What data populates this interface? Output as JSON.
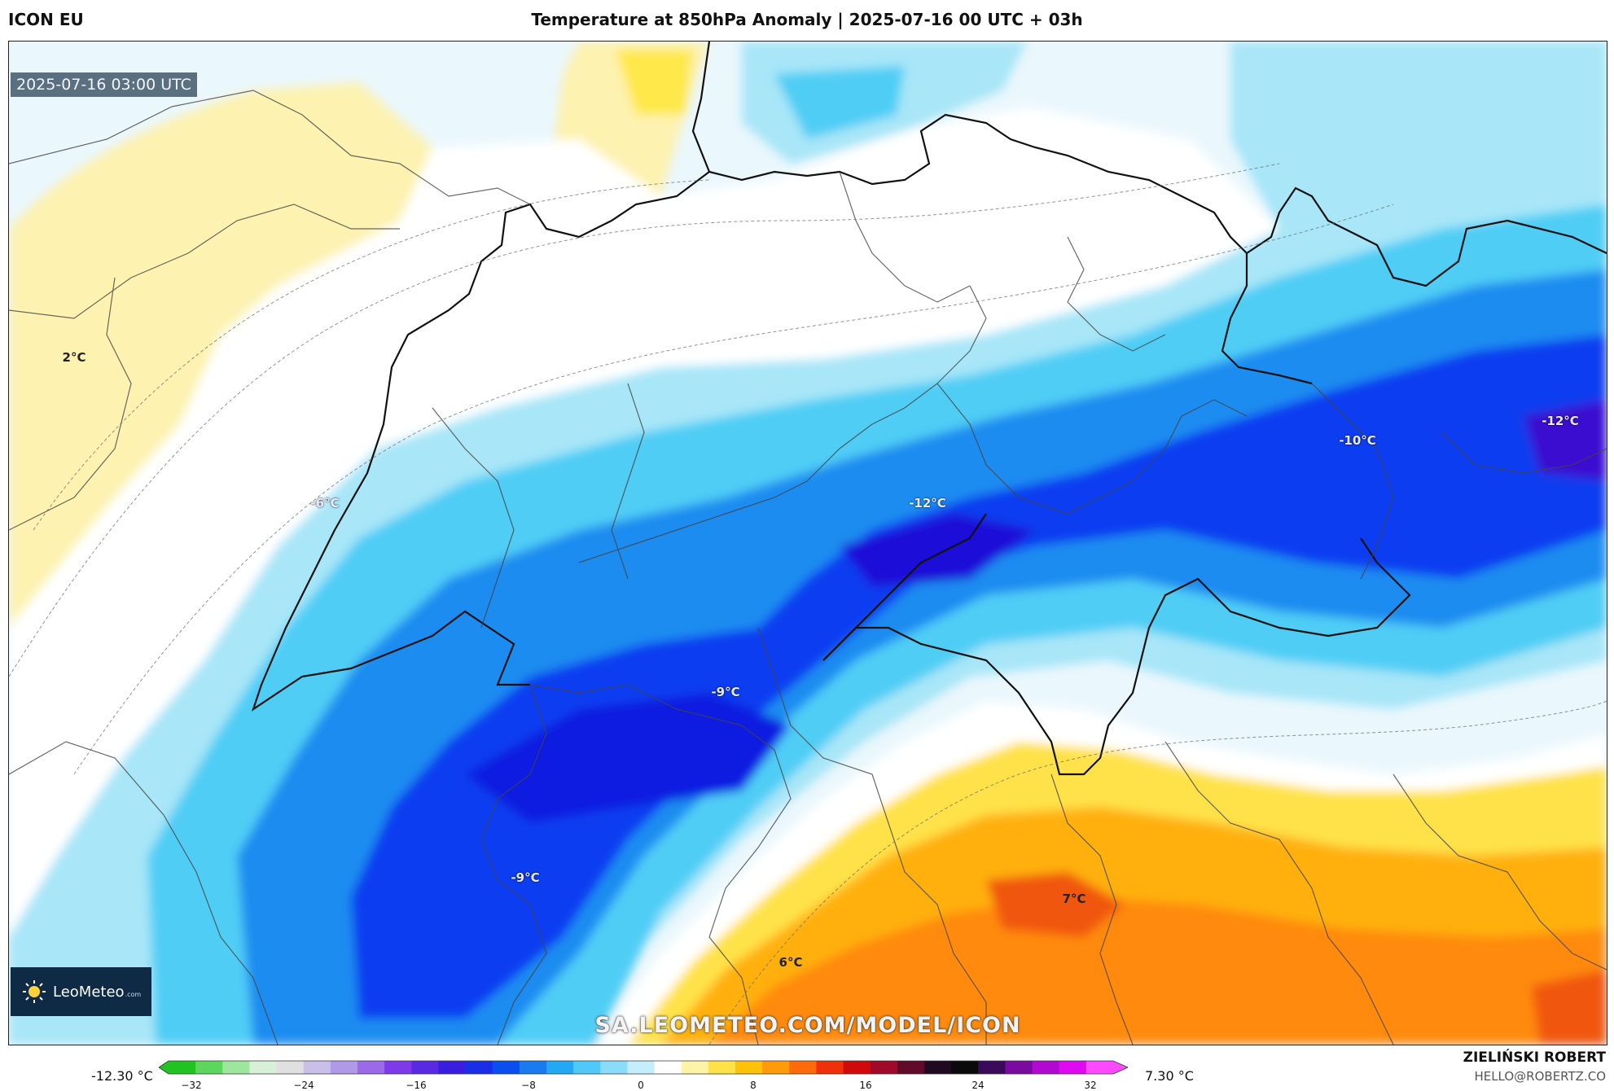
{
  "header": {
    "model": "ICON EU",
    "title": "Temperature at 850hPa Anomaly | 2025-07-16 00 UTC + 03h"
  },
  "map": {
    "timestamp": "2025-07-16 03:00 UTC",
    "labels": [
      "2°C",
      "-6°C",
      "-12°C",
      "-10°C",
      "-12°C",
      "-9°C",
      "-9°C",
      "6°C",
      "7°C"
    ],
    "watermark": "SA.LEOMETEO.COM/MODEL/ICON"
  },
  "logo": {
    "name": "LeoMeteo",
    "suffix": ".com",
    "icon": "sun-icon"
  },
  "colorbar": {
    "min_label": "-12.30 °C",
    "max_label": "7.30 °C",
    "ticks": [
      "−32",
      "−24",
      "−16",
      "−8",
      "0",
      "8",
      "16",
      "24",
      "32"
    ],
    "colors": [
      "#22c222",
      "#5ed65e",
      "#9ee69e",
      "#d8f0d8",
      "#e0e0e0",
      "#c8c0e8",
      "#b09ae8",
      "#9a6ae8",
      "#7c3ae8",
      "#5a2ae0",
      "#3a1ee0",
      "#1a2ee8",
      "#0a4ef0",
      "#1a7af0",
      "#24a8f4",
      "#50c8f8",
      "#8adcfa",
      "#c4eefc",
      "#ffffff",
      "#fff3a8",
      "#ffe24a",
      "#ffc20a",
      "#ff9a0a",
      "#ff6a0a",
      "#f0300a",
      "#d00a0a",
      "#a00a2a",
      "#600a2a",
      "#200a20",
      "#0a0a0a",
      "#3a0a5a",
      "#7a0aa0",
      "#b00ad0",
      "#e00af0",
      "#ff4aff"
    ]
  },
  "author": {
    "name": "ZIELIŃSKI ROBERT",
    "email": "HELLO@ROBERTZ.CO"
  }
}
